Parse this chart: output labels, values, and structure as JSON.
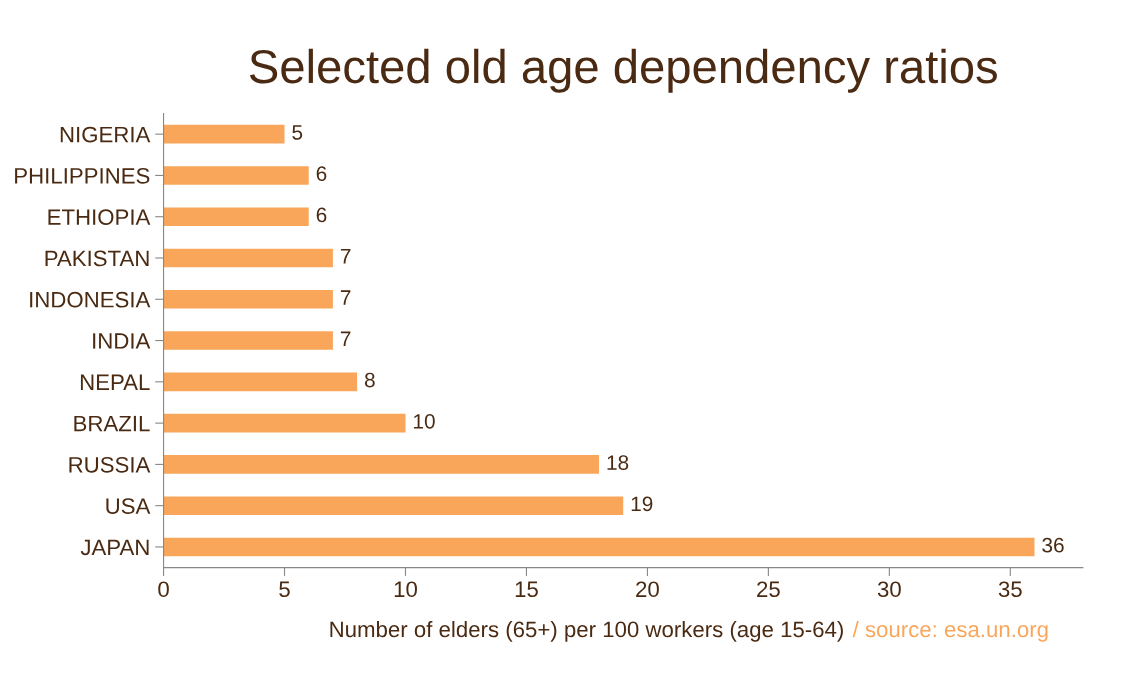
{
  "chart_data": {
    "type": "bar",
    "orientation": "horizontal",
    "title": "Selected old age dependency ratios",
    "categories": [
      "NIGERIA",
      "PHILIPPINES",
      "ETHIOPIA",
      "PAKISTAN",
      "INDONESIA",
      "INDIA",
      "NEPAL",
      "BRAZIL",
      "RUSSIA",
      "USA",
      "JAPAN"
    ],
    "values": [
      5,
      6,
      6,
      7,
      7,
      7,
      8,
      10,
      18,
      19,
      36
    ],
    "color": "#f9a65a",
    "xlim": [
      0,
      38
    ],
    "xticks": [
      0,
      5,
      10,
      15,
      20,
      25,
      30,
      35
    ],
    "xlabel": "Number of elders (65+) per 100 workers (age 15-64)",
    "annotations": [
      "/ source: esa.un.org"
    ],
    "data_labels": true,
    "grid": false,
    "legend": false
  }
}
